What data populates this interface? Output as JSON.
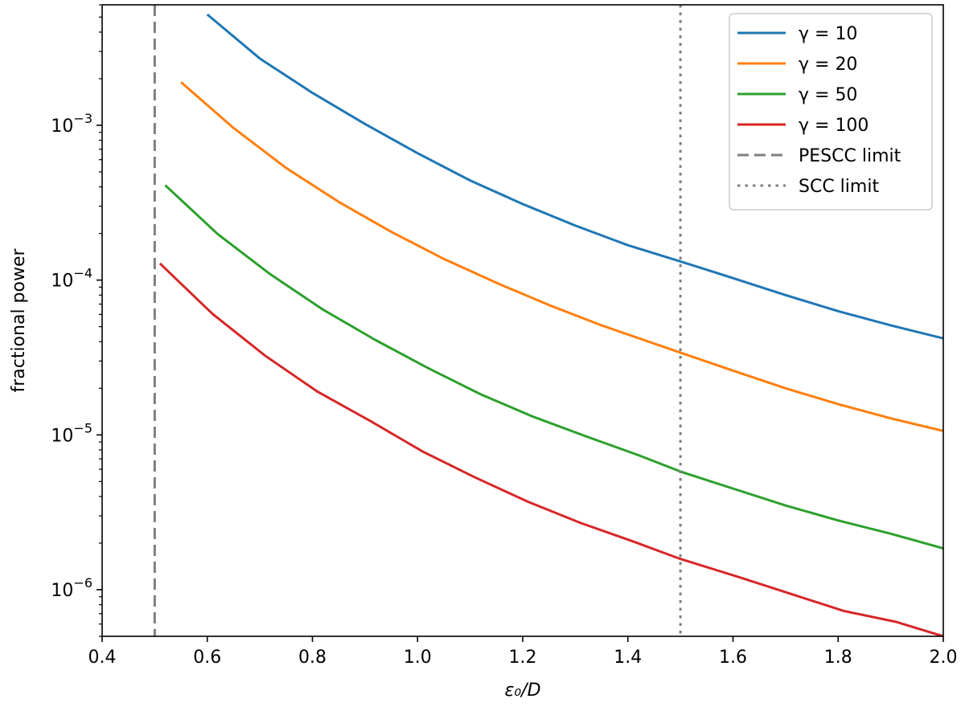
{
  "chart_data": {
    "type": "line",
    "title": "",
    "xlabel": "ε₀/D",
    "ylabel": "fractional power",
    "xlim": [
      0.4,
      2.0
    ],
    "ylim": [
      5e-07,
      0.006
    ],
    "yscale": "log",
    "grid": false,
    "legend_position": "top-right",
    "x_ticks": [
      0.4,
      0.6,
      0.8,
      1.0,
      1.2,
      1.4,
      1.6,
      1.8,
      2.0
    ],
    "x_tick_labels": [
      "0.4",
      "0.6",
      "0.8",
      "1.0",
      "1.2",
      "1.4",
      "1.6",
      "1.8",
      "2.0"
    ],
    "y_ticks": [
      {
        "value": 0.001,
        "mantissa": "10",
        "exp": "−3"
      },
      {
        "value": 0.0001,
        "mantissa": "10",
        "exp": "−4"
      },
      {
        "value": 1e-05,
        "mantissa": "10",
        "exp": "−5"
      },
      {
        "value": 1e-06,
        "mantissa": "10",
        "exp": "−6"
      }
    ],
    "series": [
      {
        "name": "γ = 10",
        "color": "#1f77b4",
        "style": "solid",
        "x": [
          0.6,
          0.7,
          0.8,
          0.9,
          1.0,
          1.1,
          1.2,
          1.3,
          1.4,
          1.5,
          1.6,
          1.7,
          1.8,
          1.9,
          2.0
        ],
        "y": [
          0.0052,
          0.0027,
          0.00162,
          0.00102,
          0.00066,
          0.00044,
          0.00031,
          0.000225,
          0.000168,
          0.000132,
          0.000103,
          8e-05,
          6.3e-05,
          5.1e-05,
          4.2e-05
        ]
      },
      {
        "name": "γ = 20",
        "color": "#ff7f0e",
        "style": "solid",
        "x": [
          0.55,
          0.65,
          0.75,
          0.85,
          0.95,
          1.05,
          1.15,
          1.25,
          1.35,
          1.5,
          1.6,
          1.7,
          1.8,
          1.9,
          2.0
        ],
        "y": [
          0.0019,
          0.00096,
          0.00053,
          0.00032,
          0.000205,
          0.000137,
          9.6e-05,
          6.9e-05,
          5.1e-05,
          3.4e-05,
          2.6e-05,
          2e-05,
          1.58e-05,
          1.28e-05,
          1.06e-05
        ]
      },
      {
        "name": "γ = 50",
        "color": "#2ca02c",
        "style": "solid",
        "x": [
          0.52,
          0.62,
          0.72,
          0.82,
          0.92,
          1.02,
          1.12,
          1.22,
          1.32,
          1.42,
          1.5,
          1.6,
          1.7,
          1.8,
          1.9,
          2.0
        ],
        "y": [
          0.00041,
          0.000198,
          0.000109,
          6.45e-05,
          4.1e-05,
          2.7e-05,
          1.83e-05,
          1.31e-05,
          9.8e-06,
          7.4e-06,
          5.8e-06,
          4.5e-06,
          3.5e-06,
          2.8e-06,
          2.3e-06,
          1.85e-06
        ]
      },
      {
        "name": "γ = 100",
        "color": "#d62728",
        "style": "solid",
        "x": [
          0.51,
          0.61,
          0.71,
          0.81,
          0.91,
          1.01,
          1.11,
          1.21,
          1.31,
          1.41,
          1.5,
          1.61,
          1.71,
          1.81,
          1.91,
          2.0
        ],
        "y": [
          0.000128,
          6.05e-05,
          3.25e-05,
          1.9e-05,
          1.23e-05,
          7.8e-06,
          5.3e-06,
          3.7e-06,
          2.7e-06,
          2.05e-06,
          1.58e-06,
          1.21e-06,
          9.4e-07,
          7.3e-07,
          6.2e-07,
          5e-07
        ]
      },
      {
        "name": "PESCC limit",
        "color": "#7f7f7f",
        "style": "dashed",
        "vline_x": 0.5
      },
      {
        "name": "SCC limit",
        "color": "#7f7f7f",
        "style": "dotted",
        "vline_x": 1.5
      }
    ]
  }
}
